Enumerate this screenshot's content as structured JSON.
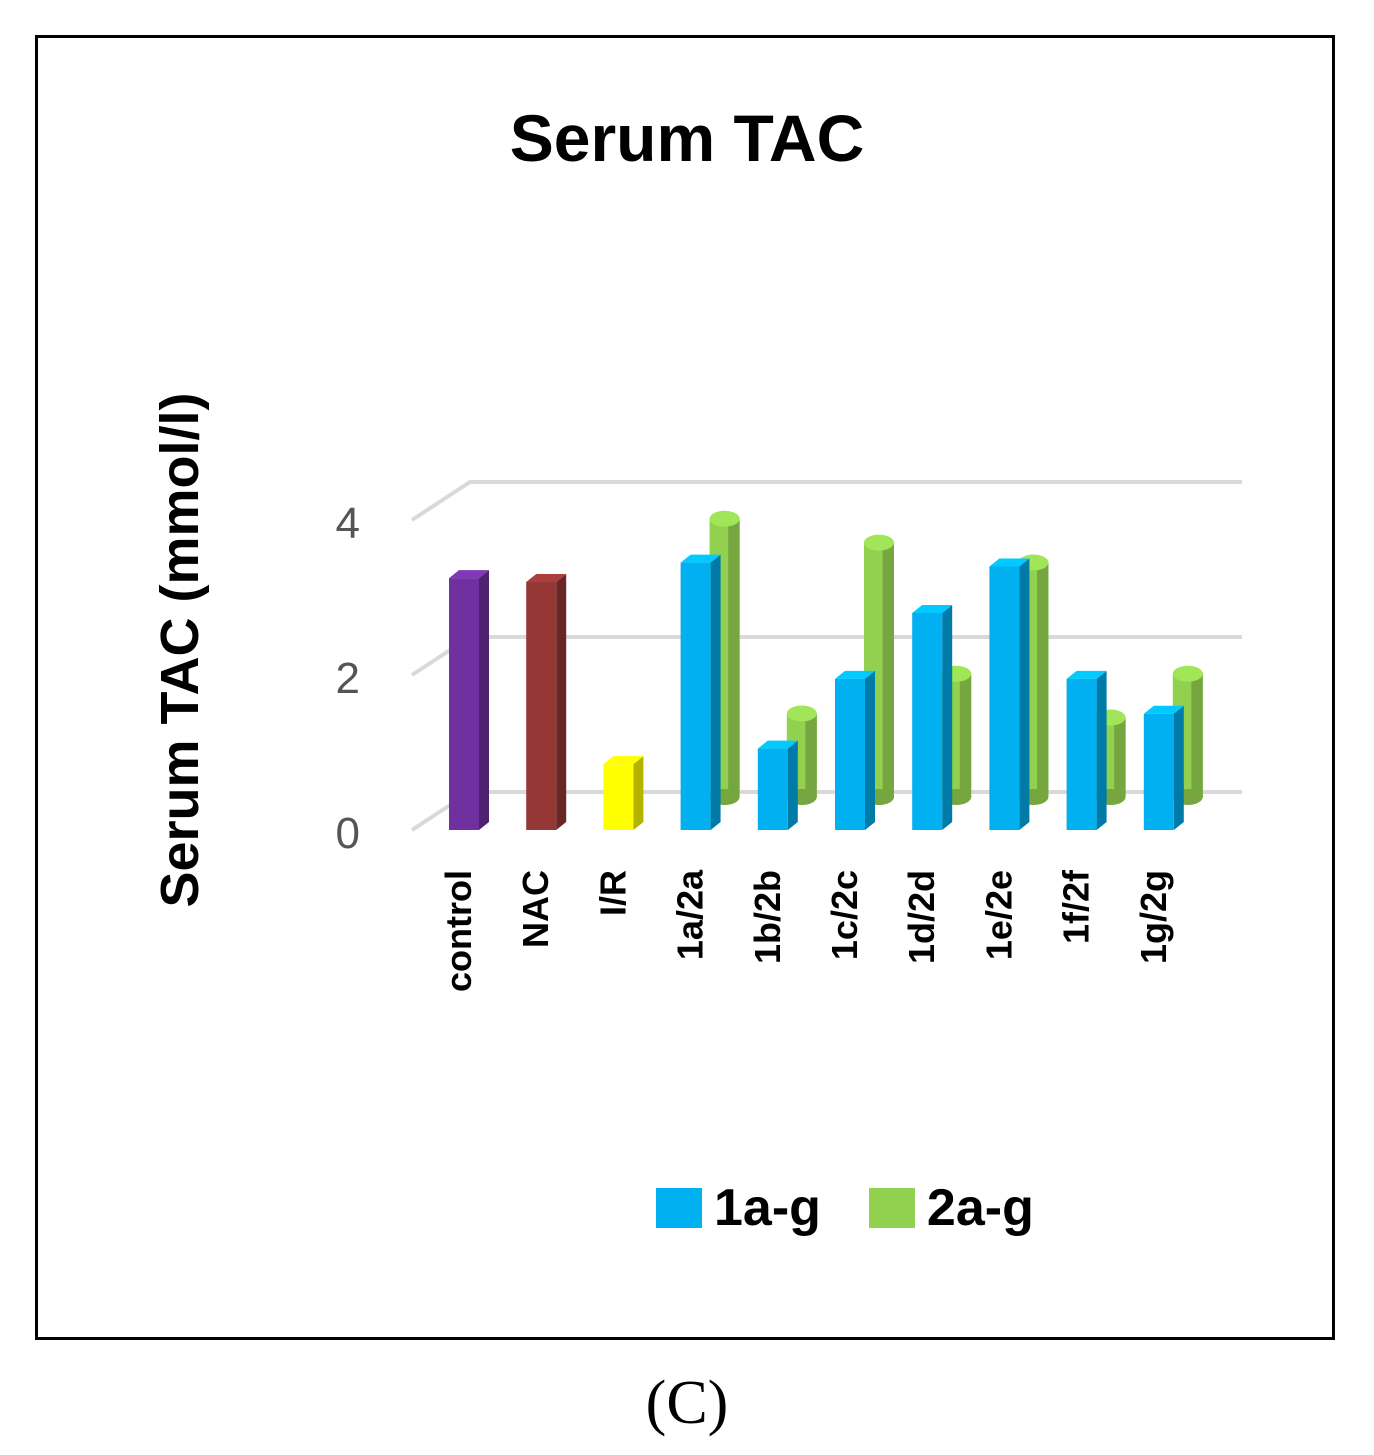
{
  "chart_data": {
    "type": "bar",
    "title": "Serum TAC",
    "ylabel": "Serum TAC (mmol/l)",
    "xlabel": "",
    "ylim": [
      0,
      4
    ],
    "yticks": [
      "0",
      "2",
      "4"
    ],
    "categories": [
      "control",
      "NAC",
      "I/R",
      "1a/2a",
      "1b/2b",
      "1c/2c",
      "1d/2d",
      "1e/2e",
      "1f/2f",
      "1g/2g"
    ],
    "single_values": [
      3.25,
      3.2,
      0.85,
      null,
      null,
      null,
      null,
      null,
      null,
      null
    ],
    "single_colors": [
      "#7030a0",
      "#953735",
      "#ffff00"
    ],
    "series": [
      {
        "name": "1a-g",
        "color": "#00b0f0",
        "values": [
          null,
          null,
          null,
          3.45,
          1.05,
          1.95,
          2.8,
          3.4,
          1.95,
          1.5
        ]
      },
      {
        "name": "2a-g",
        "color": "#92d050",
        "values": [
          null,
          null,
          null,
          3.5,
          1.05,
          3.2,
          1.55,
          2.95,
          1.0,
          1.55
        ]
      }
    ],
    "grid": true,
    "legend_position": "bottom"
  },
  "panel_label": "(C)"
}
